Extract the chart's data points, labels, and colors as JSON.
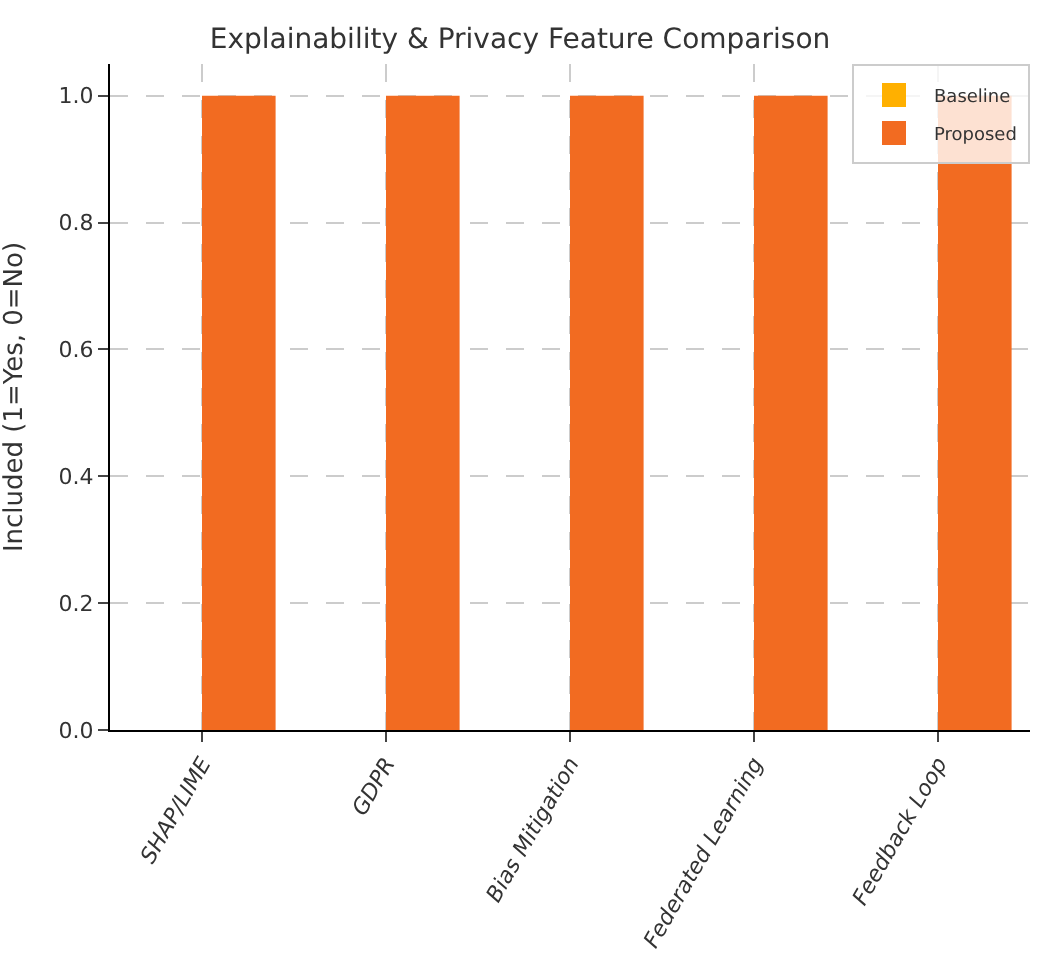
{
  "chart_data": {
    "type": "bar",
    "title": "Explainability & Privacy Feature Comparison",
    "ylabel": "Included (1=Yes, 0=No)",
    "categories": [
      "SHAP/LIME",
      "GDPR",
      "Bias Mitigation",
      "Federated Learning",
      "Feedback Loop"
    ],
    "series": [
      {
        "name": "Baseline",
        "color": "#ffb000",
        "values": [
          0,
          0,
          0,
          0,
          0
        ]
      },
      {
        "name": "Proposed",
        "color": "#f26b21",
        "values": [
          1,
          1,
          1,
          1,
          1
        ]
      }
    ],
    "ylim": [
      0,
      1.05
    ],
    "yticks": [
      {
        "value": 0,
        "label": "0.0"
      },
      {
        "value": 0.2,
        "label": "0.2"
      },
      {
        "value": 0.4,
        "label": "0.4"
      },
      {
        "value": 0.6,
        "label": "0.6"
      },
      {
        "value": 0.8,
        "label": "0.8"
      },
      {
        "value": 1,
        "label": "1.0"
      }
    ],
    "grid": true,
    "legend": "top right"
  }
}
